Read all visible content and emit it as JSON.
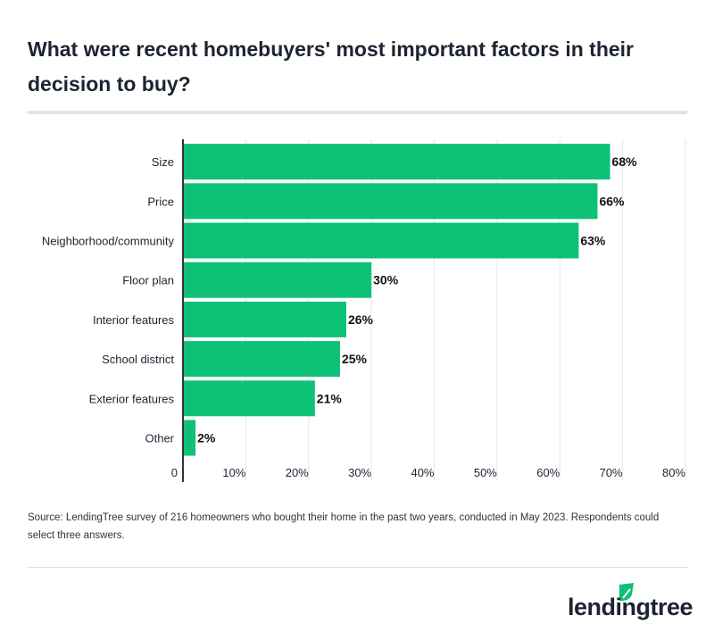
{
  "title": "What were recent homebuyers' most important factors in their decision to buy?",
  "source": "Source: LendingTree survey of 216 homeowners who bought their home in the past two years, conducted in May 2023. Respondents could select three answers.",
  "logo": "lendingtree",
  "colors": {
    "bar": "#0dc177",
    "text": "#1c2431"
  },
  "chart_data": {
    "type": "bar",
    "orientation": "horizontal",
    "categories": [
      "Size",
      "Price",
      "Neighborhood/community",
      "Floor plan",
      "Interior features",
      "School district",
      "Exterior features",
      "Other"
    ],
    "values": [
      68,
      66,
      63,
      30,
      26,
      25,
      21,
      2
    ],
    "data_labels": [
      "68%",
      "66%",
      "63%",
      "30%",
      "26%",
      "25%",
      "21%",
      "2%"
    ],
    "xlim": [
      0,
      80
    ],
    "ticks": [
      0,
      10,
      20,
      30,
      40,
      50,
      60,
      70,
      80
    ],
    "tick_labels": [
      "0",
      "10%",
      "20%",
      "30%",
      "40%",
      "50%",
      "60%",
      "70%",
      "80%"
    ],
    "grid": true
  }
}
